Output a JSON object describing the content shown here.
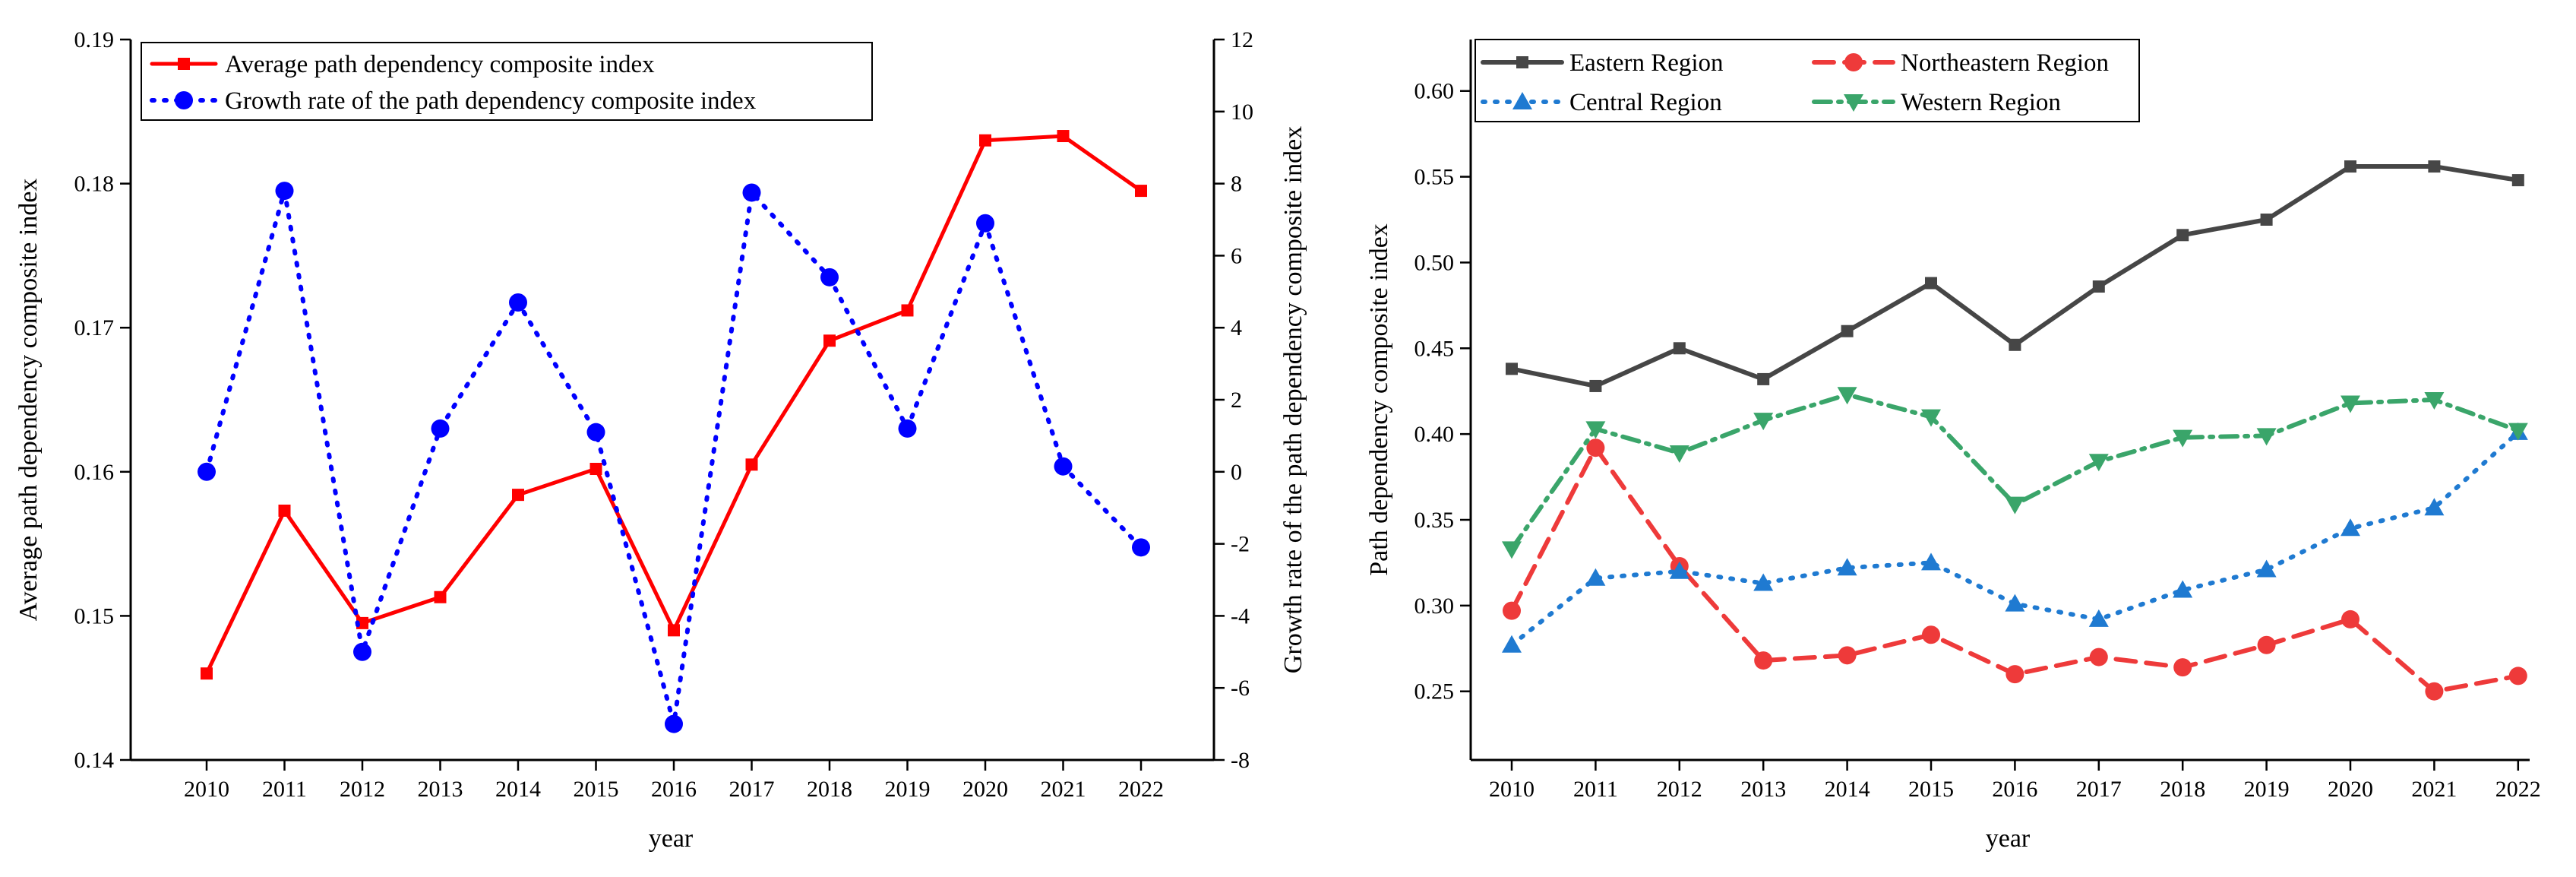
{
  "chart_data": [
    {
      "type": "line",
      "title": "",
      "xlabel": "year",
      "ylabel": "Average path dependency composite index",
      "y2label": "Growth rate of the path dependency composite index",
      "categories": [
        "2010",
        "2011",
        "2012",
        "2013",
        "2014",
        "2015",
        "2016",
        "2017",
        "2018",
        "2019",
        "2020",
        "2021",
        "2022"
      ],
      "ylim": [
        0.14,
        0.19
      ],
      "yticks": [
        "0.14",
        "0.15",
        "0.16",
        "0.17",
        "0.18",
        "0.19"
      ],
      "y2lim": [
        -8,
        12
      ],
      "y2ticks": [
        "-8",
        "-6",
        "-4",
        "-2",
        "0",
        "2",
        "4",
        "6",
        "8",
        "10",
        "12"
      ],
      "legend_position": "top-left",
      "series": [
        {
          "name": "Average path dependency composite index",
          "axis": "left",
          "color": "#ff0000",
          "style": "solid",
          "marker": "square",
          "values": [
            0.146,
            0.1573,
            0.1495,
            0.1513,
            0.1584,
            0.1602,
            0.149,
            0.1605,
            0.1691,
            0.1712,
            0.183,
            0.1833,
            0.1795
          ]
        },
        {
          "name": "Growth rate of the path dependency composite index",
          "axis": "right",
          "color": "#0000ff",
          "style": "dotted",
          "marker": "circle",
          "values": [
            0.0,
            7.8,
            -5.0,
            1.2,
            4.7,
            1.1,
            -7.0,
            7.75,
            5.4,
            1.2,
            6.9,
            0.15,
            -2.1
          ]
        }
      ]
    },
    {
      "type": "line",
      "title": "",
      "xlabel": "year",
      "ylabel": "Path dependency composite index",
      "categories": [
        "2010",
        "2011",
        "2012",
        "2013",
        "2014",
        "2015",
        "2016",
        "2017",
        "2018",
        "2019",
        "2020",
        "2021",
        "2022"
      ],
      "ylim": [
        0.21,
        0.63
      ],
      "yticks": [
        "0.25",
        "0.30",
        "0.35",
        "0.40",
        "0.45",
        "0.50",
        "0.55",
        "0.60"
      ],
      "legend_position": "top",
      "series": [
        {
          "name": "Eastern Region",
          "color": "#464646",
          "style": "solid",
          "marker": "square",
          "values": [
            0.438,
            0.428,
            0.45,
            0.432,
            0.46,
            0.488,
            0.452,
            0.486,
            0.516,
            0.525,
            0.556,
            0.556,
            0.548
          ]
        },
        {
          "name": "Northeastern Region",
          "color": "#ee3a3a",
          "style": "dashed",
          "marker": "circle",
          "values": [
            0.297,
            0.392,
            0.323,
            0.268,
            0.271,
            0.283,
            0.26,
            0.27,
            0.264,
            0.277,
            0.292,
            0.25,
            0.259
          ]
        },
        {
          "name": "Central Region",
          "color": "#1f7ad1",
          "style": "dotted",
          "marker": "triangle-up",
          "values": [
            0.277,
            0.316,
            0.32,
            0.313,
            0.322,
            0.325,
            0.301,
            0.292,
            0.309,
            0.321,
            0.345,
            0.357,
            0.401
          ]
        },
        {
          "name": "Western Region",
          "color": "#3aa56a",
          "style": "dashdot",
          "marker": "triangle-down",
          "values": [
            0.333,
            0.403,
            0.389,
            0.408,
            0.423,
            0.41,
            0.359,
            0.384,
            0.398,
            0.399,
            0.418,
            0.42,
            0.402
          ]
        }
      ]
    }
  ]
}
